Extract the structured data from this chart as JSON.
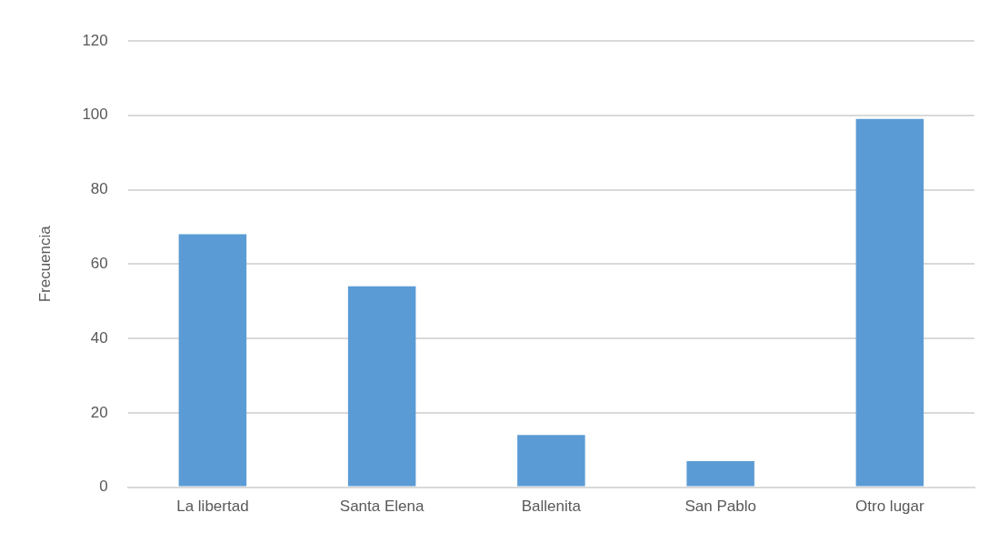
{
  "chart_data": {
    "type": "bar",
    "ylabel": "Frecuencia",
    "categories": [
      "La libertad",
      "Santa Elena",
      "Ballenita",
      "San Pablo",
      "Otro lugar"
    ],
    "values": [
      68,
      54,
      14,
      7,
      99
    ],
    "color": "#5b9bd5",
    "ylim": [
      0,
      120
    ],
    "yticks": [
      0,
      20,
      40,
      60,
      80,
      100,
      120
    ],
    "grid": "y"
  }
}
